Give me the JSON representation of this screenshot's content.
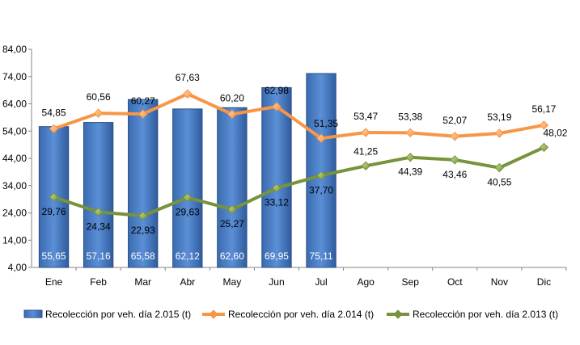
{
  "chart_data": {
    "type": "bar",
    "categories": [
      "Ene",
      "Feb",
      "Mar",
      "Abr",
      "May",
      "Jun",
      "Jul",
      "Ago",
      "Sep",
      "Oct",
      "Nov",
      "Dic"
    ],
    "ylim": [
      4,
      84
    ],
    "yticks": [
      "4,00",
      "14,00",
      "24,00",
      "34,00",
      "44,00",
      "54,00",
      "64,00",
      "74,00",
      "84,00"
    ],
    "grid": false,
    "legend_position": "bottom",
    "series": [
      {
        "name": "Recolección por veh. día 2.015 (t)",
        "kind": "bar",
        "color": "#4F81BD",
        "values": [
          55.65,
          57.16,
          65.58,
          62.12,
          62.6,
          69.95,
          75.11,
          null,
          null,
          null,
          null,
          null
        ],
        "labels": [
          "55,65",
          "57,16",
          "65,58",
          "62,12",
          "62,60",
          "69,95",
          "75,11",
          null,
          null,
          null,
          null,
          null
        ]
      },
      {
        "name": "Recolección por veh. día 2.014 (t)",
        "kind": "line",
        "color": "#F79646",
        "values": [
          54.85,
          60.56,
          60.27,
          67.63,
          60.2,
          62.98,
          51.35,
          53.47,
          53.38,
          52.07,
          53.19,
          56.17
        ],
        "labels": [
          "54,85",
          "60,56",
          "60,27",
          "67,63",
          "60,20",
          "62,98",
          "51,35",
          "53,47",
          "53,38",
          "52,07",
          "53,19",
          "56,17"
        ]
      },
      {
        "name": "Recolección por veh. día 2.013 (t)",
        "kind": "line",
        "color": "#77933C",
        "values": [
          29.76,
          24.34,
          22.93,
          29.63,
          25.27,
          33.12,
          37.7,
          41.25,
          44.39,
          43.46,
          40.55,
          48.02
        ],
        "labels": [
          "29,76",
          "24,34",
          "22,93",
          "29,63",
          "25,27",
          "33,12",
          "37,70",
          "41,25",
          "44,39",
          "43,46",
          "40,55",
          "48,02"
        ]
      }
    ]
  }
}
